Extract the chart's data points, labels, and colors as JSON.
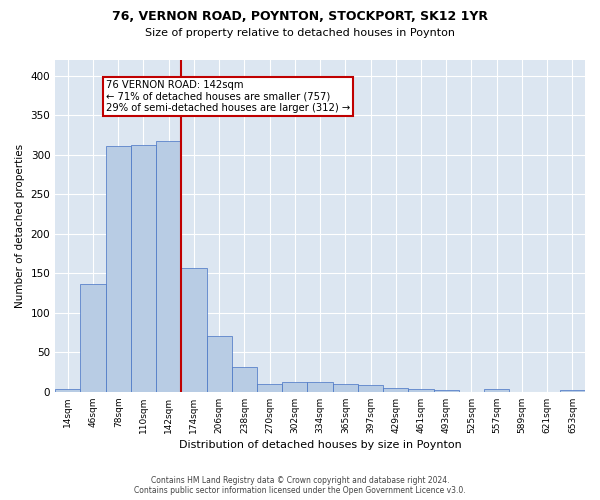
{
  "title1": "76, VERNON ROAD, POYNTON, STOCKPORT, SK12 1YR",
  "title2": "Size of property relative to detached houses in Poynton",
  "xlabel": "Distribution of detached houses by size in Poynton",
  "ylabel": "Number of detached properties",
  "categories": [
    "14sqm",
    "46sqm",
    "78sqm",
    "110sqm",
    "142sqm",
    "174sqm",
    "206sqm",
    "238sqm",
    "270sqm",
    "302sqm",
    "334sqm",
    "365sqm",
    "397sqm",
    "429sqm",
    "461sqm",
    "493sqm",
    "525sqm",
    "557sqm",
    "589sqm",
    "621sqm",
    "653sqm"
  ],
  "values": [
    4,
    137,
    311,
    313,
    318,
    157,
    71,
    32,
    10,
    13,
    13,
    10,
    8,
    5,
    3,
    2,
    0,
    3,
    0,
    0,
    2
  ],
  "highlight_index": 4,
  "bar_color": "#b8cce4",
  "highlight_color": "#c00000",
  "bar_edge_color": "#4472c4",
  "background_color": "#dce6f1",
  "annotation_text": "76 VERNON ROAD: 142sqm\n← 71% of detached houses are smaller (757)\n29% of semi-detached houses are larger (312) →",
  "footer_line1": "Contains HM Land Registry data © Crown copyright and database right 2024.",
  "footer_line2": "Contains public sector information licensed under the Open Government Licence v3.0.",
  "ylim": [
    0,
    420
  ],
  "yticks": [
    0,
    50,
    100,
    150,
    200,
    250,
    300,
    350,
    400
  ]
}
